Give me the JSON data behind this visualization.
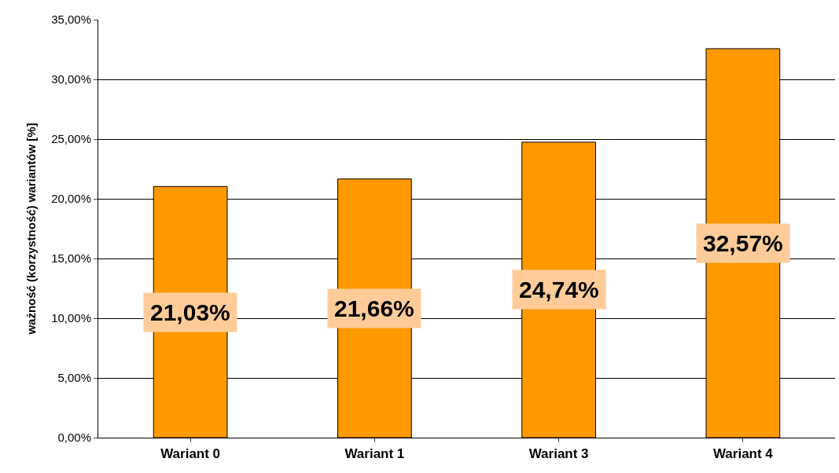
{
  "chart_data": {
    "type": "bar",
    "ylabel": "ważność (korzystność) wariantów [%]",
    "categories": [
      "Wariant 0",
      "Wariant 1",
      "Wariant 3",
      "Wariant 4"
    ],
    "values": [
      21.03,
      21.66,
      24.74,
      32.57
    ],
    "value_labels": [
      "21,03%",
      "21,66%",
      "24,74%",
      "32,57%"
    ],
    "color": "#ff9900",
    "ylim": [
      0,
      35
    ],
    "yticks": [
      {
        "value": 0,
        "label": "0,00%"
      },
      {
        "value": 5,
        "label": "5,00%"
      },
      {
        "value": 10,
        "label": "10,00%"
      },
      {
        "value": 15,
        "label": "15,00%"
      },
      {
        "value": 20,
        "label": "20,00%"
      },
      {
        "value": 25,
        "label": "25,00%"
      },
      {
        "value": 30,
        "label": "30,00%"
      },
      {
        "value": 35,
        "label": "35,00%"
      }
    ],
    "grid": "y"
  }
}
